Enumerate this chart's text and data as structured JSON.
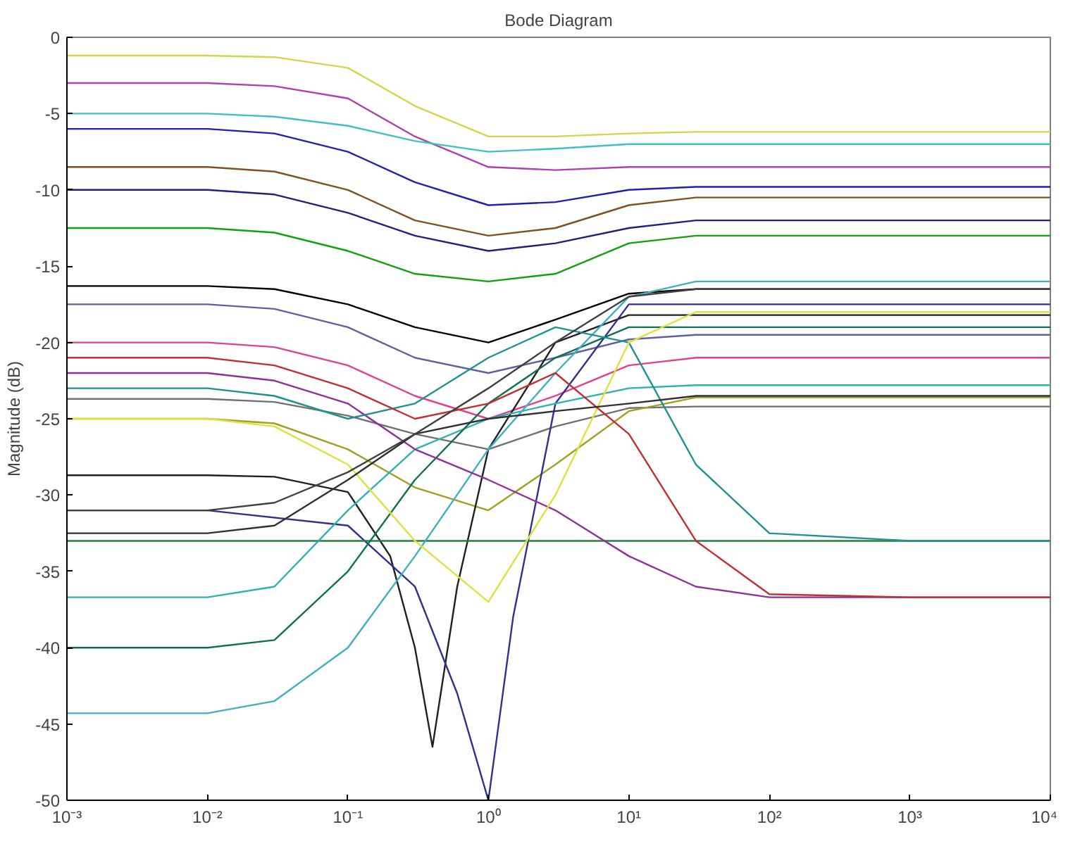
{
  "chart_data": {
    "type": "line",
    "title": "Bode Diagram",
    "ylabel": "Magnitude (dB)",
    "x": [
      0.001,
      0.01,
      0.03,
      0.1,
      0.3,
      1,
      3,
      10,
      30,
      100,
      1000,
      10000
    ],
    "xlim": [
      0.001,
      10000
    ],
    "ylim": [
      -50,
      0
    ],
    "xticks": [
      {
        "value": 0.001,
        "label": "10⁻³"
      },
      {
        "value": 0.01,
        "label": "10⁻²"
      },
      {
        "value": 0.1,
        "label": "10⁻¹"
      },
      {
        "value": 1,
        "label": "10⁰"
      },
      {
        "value": 10,
        "label": "10¹"
      },
      {
        "value": 100,
        "label": "10²"
      },
      {
        "value": 1000,
        "label": "10³"
      },
      {
        "value": 10000,
        "label": "10⁴"
      }
    ],
    "yticks": [
      -50,
      -45,
      -40,
      -35,
      -30,
      -25,
      -20,
      -15,
      -10,
      -5,
      0
    ],
    "log": "x",
    "grid": false,
    "marker": "none",
    "line_style": "solid",
    "series": [
      {
        "color": "#d4d44a",
        "values": [
          -1.2,
          -1.2,
          -1.3,
          -2,
          -4.5,
          -6.5,
          -6.5,
          -6.3,
          -6.2,
          -6.2,
          -6.2,
          -6.2
        ]
      },
      {
        "color": "#b040b0",
        "values": [
          -3,
          -3,
          -3.2,
          -4,
          -6.5,
          -8.5,
          -8.7,
          -8.5,
          -8.5,
          -8.5,
          -8.5,
          -8.5
        ]
      },
      {
        "color": "#40c0c0",
        "values": [
          -5,
          -5,
          -5.2,
          -5.8,
          -6.8,
          -7.5,
          -7.3,
          -7,
          -7,
          -7,
          -7,
          -7
        ]
      },
      {
        "color": "#2020b0",
        "values": [
          -6,
          -6,
          -6.3,
          -7.5,
          -9.5,
          -11,
          -10.8,
          -10,
          -9.8,
          -9.8,
          -9.8,
          -9.8
        ]
      },
      {
        "color": "#805020",
        "values": [
          -8.5,
          -8.5,
          -8.8,
          -10,
          -12,
          -13,
          -12.5,
          -11,
          -10.5,
          -10.5,
          -10.5,
          -10.5
        ]
      },
      {
        "color": "#202080",
        "values": [
          -10,
          -10,
          -10.3,
          -11.5,
          -13,
          -14,
          -13.5,
          -12.5,
          -12,
          -12,
          -12,
          -12
        ]
      },
      {
        "color": "#10a010",
        "values": [
          -12.5,
          -12.5,
          -12.8,
          -14,
          -15.5,
          -16,
          -15.5,
          -13.5,
          -13,
          -13,
          -13,
          -13
        ]
      },
      {
        "color": "#000000",
        "values": [
          -16.3,
          -16.3,
          -16.5,
          -17.5,
          -19,
          -20,
          -18.5,
          -16.8,
          -16.5,
          -16.5,
          -16.5,
          -16.5
        ]
      },
      {
        "color": "#6060a0",
        "values": [
          -17.5,
          -17.5,
          -17.8,
          -19,
          -21,
          -22,
          -21,
          -19.8,
          -19.5,
          -19.5,
          -19.5,
          -19.5
        ]
      },
      {
        "color": "#e04090",
        "values": [
          -20,
          -20,
          -20.3,
          -21.5,
          -23.5,
          -25,
          -23.5,
          -21.5,
          -21,
          -21,
          -21,
          -21
        ]
      },
      {
        "color": "#707070",
        "values": [
          -23.7,
          -23.7,
          -23.9,
          -24.8,
          -26,
          -27,
          -25.5,
          -24.3,
          -24.2,
          -24.2,
          -24.2,
          -24.2
        ]
      },
      {
        "color": "#a0a020",
        "values": [
          -25,
          -25,
          -25.3,
          -27,
          -29.5,
          -31,
          -28,
          -24.5,
          -23.6,
          -23.6,
          -23.6,
          -23.6
        ]
      },
      {
        "color": "#202020",
        "x": [
          0.001,
          0.01,
          0.03,
          0.1,
          0.2,
          0.3,
          0.4,
          0.6,
          1,
          3,
          10,
          100,
          10000
        ],
        "values": [
          -28.7,
          -28.7,
          -28.8,
          -29.8,
          -34,
          -40,
          -46.5,
          -36,
          -27,
          -20,
          -18.2,
          -18.2,
          -18.2
        ]
      },
      {
        "color": "#303090",
        "x": [
          0.001,
          0.01,
          0.1,
          0.3,
          0.6,
          1,
          1.5,
          3,
          10,
          100,
          10000
        ],
        "values": [
          -31,
          -31,
          -32,
          -36,
          -43,
          -50,
          -38,
          -24,
          -17.5,
          -17.5,
          -17.5
        ]
      },
      {
        "color": "#208040",
        "values": [
          -33,
          -33,
          -33,
          -33,
          -33,
          -33,
          -33,
          -33,
          -33,
          -33,
          -33,
          -33
        ]
      },
      {
        "color": "#30b0b0",
        "values": [
          -36.7,
          -36.7,
          -36,
          -31,
          -27,
          -25,
          -24,
          -23,
          -22.8,
          -22.8,
          -22.8,
          -22.8
        ]
      },
      {
        "color": "#107050",
        "values": [
          -40,
          -40,
          -39.5,
          -35,
          -29,
          -24,
          -21,
          -19,
          -19,
          -19,
          -19,
          -19
        ]
      },
      {
        "color": "#40b0c0",
        "values": [
          -44.3,
          -44.3,
          -43.5,
          -40,
          -34,
          -27,
          -22,
          -17,
          -16,
          -16,
          -16,
          -16
        ]
      },
      {
        "color": "#9030a0",
        "values": [
          -22,
          -22,
          -22.5,
          -24,
          -27,
          -29,
          -31,
          -34,
          -36,
          -36.7,
          -36.7,
          -36.7
        ]
      },
      {
        "color": "#209090",
        "values": [
          -23,
          -23,
          -23.5,
          -25,
          -24,
          -21,
          -19,
          -20,
          -28,
          -32.5,
          -33,
          -33
        ]
      },
      {
        "color": "#e0e040",
        "values": [
          -25,
          -25,
          -25.5,
          -28,
          -33,
          -37,
          -30,
          -20,
          -18,
          -18,
          -18,
          -18
        ]
      },
      {
        "color": "#c03030",
        "values": [
          -21,
          -21,
          -21.5,
          -23,
          -25,
          -24,
          -22,
          -26,
          -33,
          -36.5,
          -36.7,
          -36.7
        ]
      },
      {
        "color": "#303030",
        "values": [
          -32.5,
          -32.5,
          -32,
          -29,
          -26,
          -25,
          -24.5,
          -24,
          -23.5,
          -23.5,
          -23.5,
          -23.5
        ]
      },
      {
        "color": "#404040",
        "values": [
          -31,
          -31,
          -30.5,
          -28.5,
          -26,
          -23,
          -20,
          -17,
          -16.5,
          -16.5,
          -16.5,
          -16.5
        ]
      }
    ]
  }
}
